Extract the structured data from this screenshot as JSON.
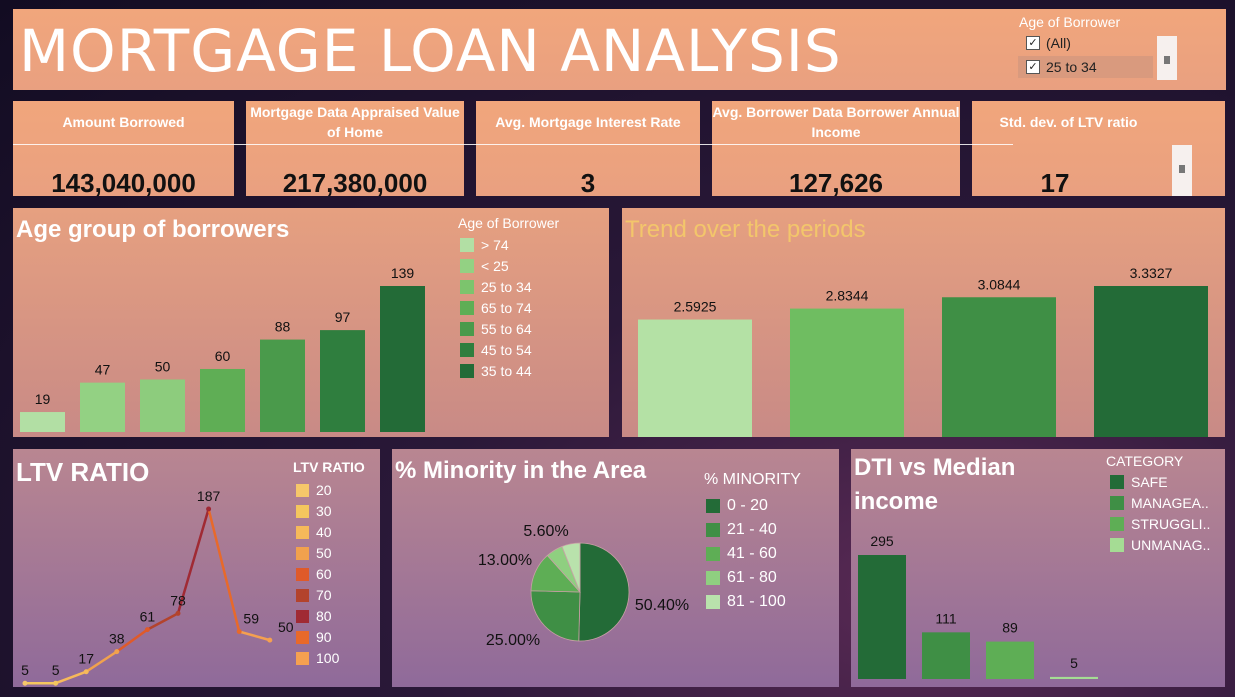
{
  "header": {
    "title": "MORTGAGE LOAN ANALYSIS",
    "filter": {
      "title": "Age of Borrower",
      "options": [
        {
          "label": "(All)",
          "checked": true
        },
        {
          "label": "25 to 34",
          "checked": true
        }
      ]
    }
  },
  "kpis": [
    {
      "label": "Amount Borrowed",
      "value": "143,040,000"
    },
    {
      "label": "Mortgage Data Appraised Value of Home",
      "value": "217,380,000"
    },
    {
      "label": "Avg. Mortgage Interest Rate",
      "value": "3"
    },
    {
      "label": "Avg. Borrower Data Borrower Annual Income",
      "value": "127,626"
    },
    {
      "label": "Std. dev. of LTV ratio",
      "value": "17"
    }
  ],
  "age_panel": {
    "title": "Age group of borrowers",
    "legend_title": "Age of Borrower",
    "legend": [
      {
        "label": "> 74",
        "color": "#b2dfa4"
      },
      {
        "label": "< 25",
        "color": "#93d183"
      },
      {
        "label": "25 to 34",
        "color": "#7cc46d"
      },
      {
        "label": "65 to 74",
        "color": "#5fae55"
      },
      {
        "label": "55 to 64",
        "color": "#4a9a4b"
      },
      {
        "label": "45 to 54",
        "color": "#2f7e3e"
      },
      {
        "label": "35 to 44",
        "color": "#236b37"
      }
    ]
  },
  "trend_panel": {
    "title": "Trend over the periods"
  },
  "ltv_panel": {
    "title": "LTV RATIO",
    "legend_title": "LTV RATIO",
    "legend": [
      {
        "label": "20",
        "color": "#f6c76a"
      },
      {
        "label": "30",
        "color": "#f4c65e"
      },
      {
        "label": "40",
        "color": "#f6b95a"
      },
      {
        "label": "50",
        "color": "#f1a14d"
      },
      {
        "label": "60",
        "color": "#df5a2a"
      },
      {
        "label": "70",
        "color": "#b3432c"
      },
      {
        "label": "80",
        "color": "#a02a34"
      },
      {
        "label": "90",
        "color": "#e8692a"
      },
      {
        "label": "100",
        "color": "#f5a050"
      }
    ]
  },
  "minority_panel": {
    "title": "% Minority in the Area",
    "legend_title": "% MINORITY",
    "legend": [
      {
        "label": "0 - 20",
        "color": "#236b37"
      },
      {
        "label": "21 - 40",
        "color": "#3f8f45"
      },
      {
        "label": "41 - 60",
        "color": "#5eae55"
      },
      {
        "label": "61 - 80",
        "color": "#8fcf80"
      },
      {
        "label": "81 - 100",
        "color": "#b9e2ac"
      }
    ]
  },
  "dti_panel": {
    "title_line1": "DTI vs Median",
    "title_line2": "income",
    "legend_title": "CATEGORY",
    "legend": [
      {
        "label": "SAFE",
        "color": "#236b37"
      },
      {
        "label": "MANAGEA..",
        "color": "#3f8f45"
      },
      {
        "label": "STRUGGLI..",
        "color": "#5eae55"
      },
      {
        "label": "UNMANAG..",
        "color": "#a5dc94"
      }
    ]
  },
  "chart_data": [
    {
      "type": "bar",
      "title": "Age group of borrowers",
      "categories": [
        "> 74",
        "< 25",
        "25 to 34",
        "65 to 74",
        "55 to 64",
        "45 to 54",
        "35 to 44"
      ],
      "values": [
        19,
        47,
        50,
        60,
        88,
        97,
        139
      ],
      "colors": [
        "#b2dfa4",
        "#93d183",
        "#8dcc7d",
        "#5fae55",
        "#4a9a4b",
        "#2f7e3e",
        "#236b37"
      ],
      "ylim": [
        0,
        139
      ]
    },
    {
      "type": "bar",
      "title": "Trend over the periods",
      "values": [
        2.5925,
        2.8344,
        3.0844,
        3.3327
      ],
      "labels": [
        "2.5925",
        "2.8344",
        "3.0844",
        "3.3327"
      ],
      "colors": [
        "#b4e1a5",
        "#6fbd61",
        "#3f8f45",
        "#236b37"
      ],
      "ylim": [
        0,
        3.3327
      ]
    },
    {
      "type": "line",
      "title": "LTV RATIO",
      "x": [
        "20",
        "30",
        "40",
        "50",
        "60",
        "70",
        "80",
        "90",
        "100"
      ],
      "values": [
        5,
        5,
        17,
        38,
        61,
        78,
        187,
        59,
        50
      ],
      "colors": [
        "#f6c76a",
        "#f4c65e",
        "#f6b95a",
        "#f1a14d",
        "#df5a2a",
        "#b3432c",
        "#a02a34",
        "#e8692a",
        "#f5a050"
      ],
      "ylim": [
        0,
        187
      ]
    },
    {
      "type": "pie",
      "title": "% Minority in the Area",
      "categories": [
        "0 - 20",
        "21 - 40",
        "41 - 60",
        "61 - 80",
        "81 - 100"
      ],
      "values": [
        50.4,
        25.0,
        13.0,
        5.6,
        6.0
      ],
      "labels": [
        "50.40%",
        "25.00%",
        "13.00%",
        "5.60%",
        ""
      ],
      "colors": [
        "#236b37",
        "#3f8f45",
        "#5eae55",
        "#8fcf80",
        "#b9e2ac"
      ]
    },
    {
      "type": "bar",
      "title": "DTI vs Median income",
      "categories": [
        "SAFE",
        "MANAGEA..",
        "STRUGGLI..",
        "UNMANAG.."
      ],
      "values": [
        295,
        111,
        89,
        5
      ],
      "colors": [
        "#236b37",
        "#3f8f45",
        "#5eae55",
        "#a5dc94"
      ],
      "ylim": [
        0,
        295
      ]
    }
  ]
}
